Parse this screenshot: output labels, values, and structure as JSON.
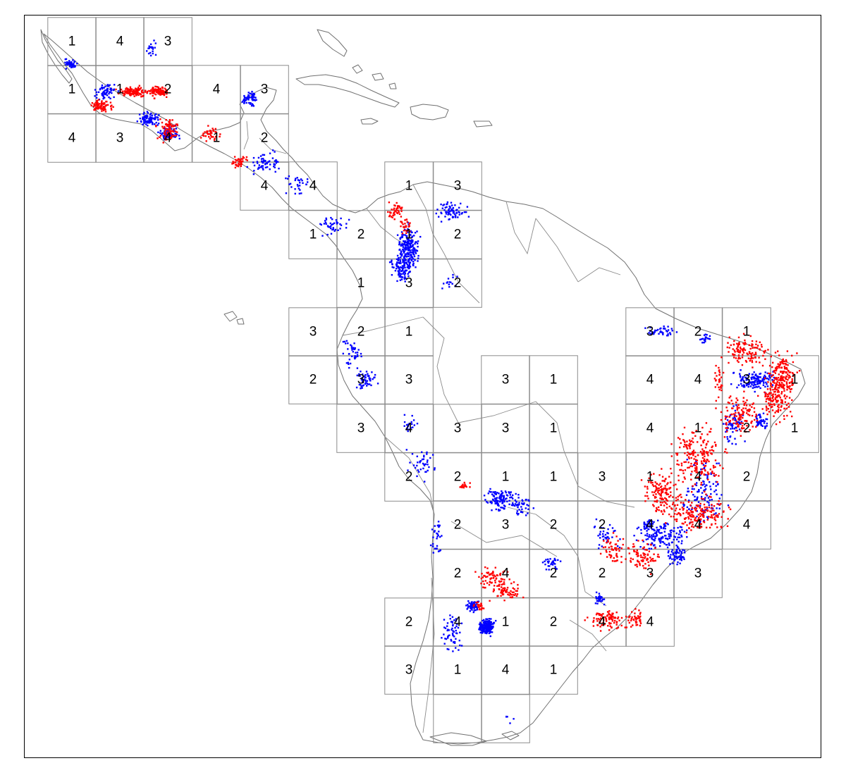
{
  "colors": {
    "series_a": "#ff0000",
    "series_b": "#0000ff",
    "coastline": "#707070",
    "grid": "#8c8c8c"
  },
  "grid_labels": [
    "1",
    "4",
    "3",
    "1",
    "1",
    "2",
    "4",
    "3",
    "4",
    "3",
    "4",
    "1",
    "2",
    "4",
    "4",
    "1",
    "3",
    "1",
    "2",
    "1",
    "2",
    "1",
    "3",
    "2",
    "3",
    "2",
    "1",
    "3",
    "2",
    "1",
    "2",
    "3",
    "3",
    "3",
    "1",
    "4",
    "4",
    "3",
    "1",
    "3",
    "4",
    "3",
    "3",
    "1",
    "4",
    "1",
    "2",
    "1",
    "2",
    "2",
    "1",
    "1",
    "3",
    "1",
    "4",
    "2",
    "2",
    "3",
    "2",
    "2",
    "4",
    "4",
    "4",
    "2",
    "4",
    "2",
    "2",
    "3",
    "3",
    "2",
    "4",
    "1",
    "2",
    "4",
    "4",
    "3",
    "1",
    "4",
    "1"
  ]
}
